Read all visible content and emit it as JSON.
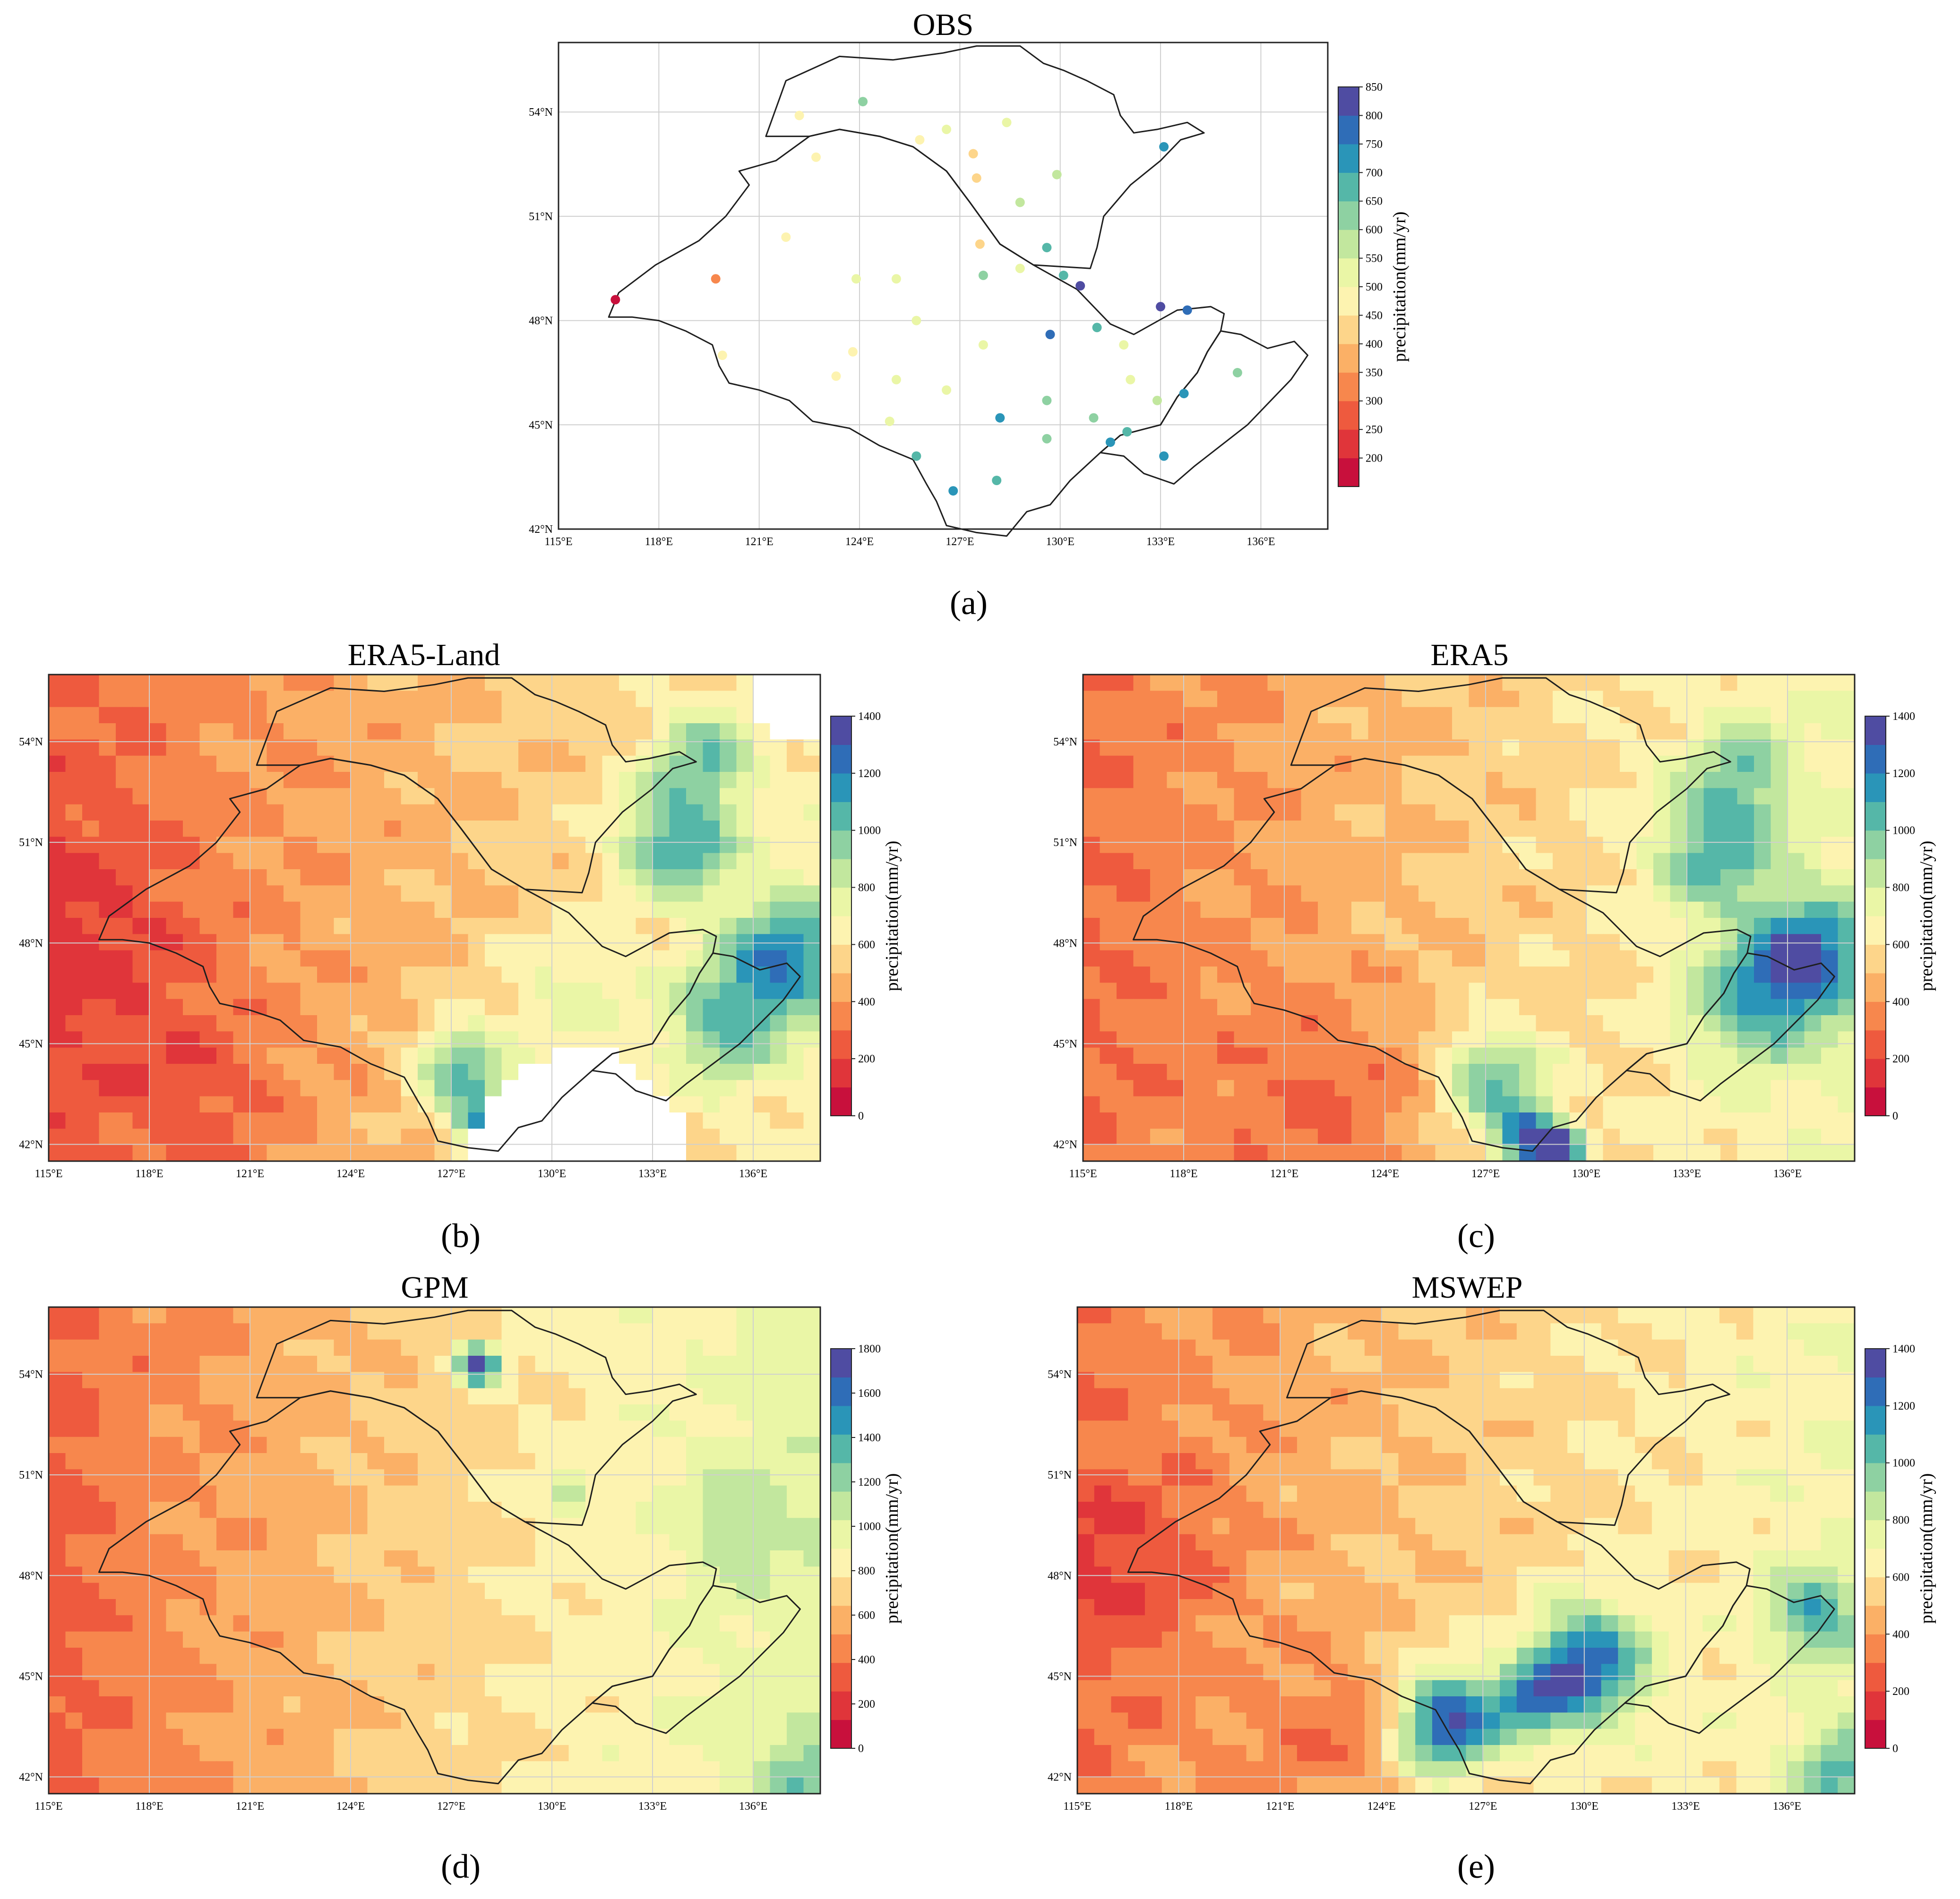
{
  "chart_data": [
    {
      "id": "a",
      "type": "scatter",
      "title": "OBS",
      "panel_label": "(a)",
      "xlim": [
        115,
        138
      ],
      "ylim": [
        42,
        56
      ],
      "xticks": [
        115,
        118,
        121,
        124,
        127,
        130,
        133,
        136
      ],
      "xtick_labels": [
        "115°E",
        "118°E",
        "121°E",
        "124°E",
        "127°E",
        "130°E",
        "133°E",
        "136°E"
      ],
      "yticks": [
        42,
        45,
        48,
        51,
        54
      ],
      "ytick_labels": [
        "42°N",
        "45°N",
        "48°N",
        "51°N",
        "54°N"
      ],
      "colorbar": {
        "label": "precipitation(mm/yr)",
        "min": 150,
        "max": 850,
        "ticks": [
          200,
          250,
          300,
          350,
          400,
          450,
          500,
          550,
          600,
          650,
          700,
          750,
          800,
          850
        ]
      },
      "stations": [
        {
          "lon": 116.7,
          "lat": 48.6,
          "value": 190
        },
        {
          "lon": 119.7,
          "lat": 49.2,
          "value": 320
        },
        {
          "lon": 119.9,
          "lat": 47.0,
          "value": 470
        },
        {
          "lon": 121.8,
          "lat": 50.4,
          "value": 460
        },
        {
          "lon": 122.7,
          "lat": 52.7,
          "value": 480
        },
        {
          "lon": 122.2,
          "lat": 53.9,
          "value": 480
        },
        {
          "lon": 124.1,
          "lat": 54.3,
          "value": 600
        },
        {
          "lon": 125.8,
          "lat": 53.2,
          "value": 470
        },
        {
          "lon": 126.6,
          "lat": 53.5,
          "value": 500
        },
        {
          "lon": 127.4,
          "lat": 52.8,
          "value": 420
        },
        {
          "lon": 128.4,
          "lat": 53.7,
          "value": 520
        },
        {
          "lon": 129.9,
          "lat": 52.2,
          "value": 560
        },
        {
          "lon": 127.5,
          "lat": 52.1,
          "value": 430
        },
        {
          "lon": 128.8,
          "lat": 51.4,
          "value": 590
        },
        {
          "lon": 127.6,
          "lat": 50.2,
          "value": 440
        },
        {
          "lon": 129.6,
          "lat": 50.1,
          "value": 680
        },
        {
          "lon": 128.8,
          "lat": 49.5,
          "value": 500
        },
        {
          "lon": 130.1,
          "lat": 49.3,
          "value": 650
        },
        {
          "lon": 127.7,
          "lat": 49.3,
          "value": 600
        },
        {
          "lon": 123.9,
          "lat": 49.2,
          "value": 520
        },
        {
          "lon": 125.1,
          "lat": 49.2,
          "value": 520
        },
        {
          "lon": 125.7,
          "lat": 48.0,
          "value": 520
        },
        {
          "lon": 123.8,
          "lat": 47.1,
          "value": 460
        },
        {
          "lon": 123.3,
          "lat": 46.4,
          "value": 450
        },
        {
          "lon": 125.1,
          "lat": 46.3,
          "value": 500
        },
        {
          "lon": 126.6,
          "lat": 46.0,
          "value": 500
        },
        {
          "lon": 127.7,
          "lat": 47.3,
          "value": 520
        },
        {
          "lon": 129.7,
          "lat": 47.6,
          "value": 760
        },
        {
          "lon": 130.6,
          "lat": 49.0,
          "value": 800
        },
        {
          "lon": 131.1,
          "lat": 47.8,
          "value": 690
        },
        {
          "lon": 133.0,
          "lat": 48.4,
          "value": 810
        },
        {
          "lon": 133.8,
          "lat": 48.3,
          "value": 760
        },
        {
          "lon": 133.1,
          "lat": 53.0,
          "value": 730
        },
        {
          "lon": 131.9,
          "lat": 47.3,
          "value": 520
        },
        {
          "lon": 132.1,
          "lat": 46.3,
          "value": 540
        },
        {
          "lon": 135.3,
          "lat": 46.5,
          "value": 620
        },
        {
          "lon": 133.7,
          "lat": 45.9,
          "value": 700
        },
        {
          "lon": 132.9,
          "lat": 45.7,
          "value": 580
        },
        {
          "lon": 129.6,
          "lat": 45.7,
          "value": 620
        },
        {
          "lon": 128.2,
          "lat": 45.2,
          "value": 740
        },
        {
          "lon": 131.0,
          "lat": 45.2,
          "value": 600
        },
        {
          "lon": 131.5,
          "lat": 44.5,
          "value": 740
        },
        {
          "lon": 132.0,
          "lat": 44.8,
          "value": 680
        },
        {
          "lon": 129.6,
          "lat": 44.6,
          "value": 640
        },
        {
          "lon": 124.9,
          "lat": 45.1,
          "value": 520
        },
        {
          "lon": 125.7,
          "lat": 44.1,
          "value": 690
        },
        {
          "lon": 126.8,
          "lat": 43.1,
          "value": 740
        },
        {
          "lon": 128.1,
          "lat": 43.4,
          "value": 680
        },
        {
          "lon": 133.1,
          "lat": 44.1,
          "value": 720
        }
      ]
    },
    {
      "id": "b",
      "type": "heatmap",
      "title": "ERA5-Land",
      "panel_label": "(b)",
      "xlim": [
        115,
        138
      ],
      "ylim": [
        41.5,
        56
      ],
      "xticks": [
        115,
        118,
        121,
        124,
        127,
        130,
        133,
        136
      ],
      "xtick_labels": [
        "115°E",
        "118°E",
        "121°E",
        "124°E",
        "127°E",
        "130°E",
        "133°E",
        "136°E"
      ],
      "yticks": [
        42,
        45,
        48,
        51,
        54
      ],
      "ytick_labels": [
        "42°N",
        "45°N",
        "48°N",
        "51°N",
        "54°N"
      ],
      "colorbar": {
        "label": "precipitation(mm/yr)",
        "min": 0,
        "max": 1400,
        "ticks": [
          0,
          200,
          400,
          600,
          800,
          1000,
          1200,
          1400
        ]
      },
      "field_base": 560,
      "gradient": {
        "west_value": 260,
        "east_value": 640
      },
      "features": [
        {
          "lon": 116.5,
          "lat": 48.0,
          "amp": -140,
          "r": 2.5
        },
        {
          "lon": 133.7,
          "lat": 51.0,
          "amp": 520,
          "r": 1.2
        },
        {
          "lon": 134.5,
          "lat": 53.5,
          "amp": 360,
          "r": 1.0
        },
        {
          "lon": 136.9,
          "lat": 47.5,
          "amp": 560,
          "r": 1.3
        },
        {
          "lon": 135.0,
          "lat": 45.5,
          "amp": 400,
          "r": 1.2
        },
        {
          "lon": 127.3,
          "lat": 44.2,
          "amp": 520,
          "r": 1.0
        },
        {
          "lon": 128.2,
          "lat": 42.3,
          "amp": 700,
          "r": 0.7
        },
        {
          "lon": 130.5,
          "lat": 46.5,
          "amp": 200,
          "r": 1.5
        },
        {
          "lon": 119.5,
          "lat": 43.5,
          "amp": -120,
          "r": 1.8
        }
      ],
      "missing": [
        {
          "lon": 130.8,
          "lat": 41.6,
          "r": 3.2
        },
        {
          "lon": 137.2,
          "lat": 55.2,
          "r": 1.2
        }
      ]
    },
    {
      "id": "c",
      "type": "heatmap",
      "title": "ERA5",
      "panel_label": "(c)",
      "xlim": [
        115,
        138
      ],
      "ylim": [
        41.5,
        56
      ],
      "xticks": [
        115,
        118,
        121,
        124,
        127,
        130,
        133,
        136
      ],
      "xtick_labels": [
        "115°E",
        "118°E",
        "121°E",
        "124°E",
        "127°E",
        "130°E",
        "133°E",
        "136°E"
      ],
      "yticks": [
        42,
        45,
        48,
        51,
        54
      ],
      "ytick_labels": [
        "42°N",
        "45°N",
        "48°N",
        "51°N",
        "54°N"
      ],
      "colorbar": {
        "label": "precipitation(mm/yr)",
        "min": 0,
        "max": 1400,
        "ticks": [
          0,
          200,
          400,
          600,
          800,
          1000,
          1200,
          1400
        ]
      },
      "field_base": 570,
      "gradient": {
        "west_value": 280,
        "east_value": 700
      },
      "features": [
        {
          "lon": 133.9,
          "lat": 50.8,
          "amp": 420,
          "r": 1.3
        },
        {
          "lon": 134.6,
          "lat": 53.2,
          "amp": 300,
          "r": 1.0
        },
        {
          "lon": 136.6,
          "lat": 47.6,
          "amp": 600,
          "r": 1.2
        },
        {
          "lon": 134.9,
          "lat": 46.2,
          "amp": 380,
          "r": 1.4
        },
        {
          "lon": 127.2,
          "lat": 44.0,
          "amp": 460,
          "r": 1.1
        },
        {
          "lon": 128.2,
          "lat": 42.2,
          "amp": 650,
          "r": 0.7
        },
        {
          "lon": 129.2,
          "lat": 41.8,
          "amp": 700,
          "r": 0.5
        },
        {
          "lon": 122.5,
          "lat": 43.5,
          "amp": -170,
          "r": 2.0
        }
      ],
      "missing": []
    },
    {
      "id": "d",
      "type": "heatmap",
      "title": "GPM",
      "panel_label": "(d)",
      "xlim": [
        115,
        138
      ],
      "ylim": [
        41.5,
        56
      ],
      "xticks": [
        115,
        118,
        121,
        124,
        127,
        130,
        133,
        136
      ],
      "xtick_labels": [
        "115°E",
        "118°E",
        "121°E",
        "124°E",
        "127°E",
        "130°E",
        "133°E",
        "136°E"
      ],
      "yticks": [
        42,
        45,
        48,
        51,
        54
      ],
      "ytick_labels": [
        "42°N",
        "45°N",
        "48°N",
        "51°N",
        "54°N"
      ],
      "colorbar": {
        "label": "precipitation(mm/yr)",
        "min": 0,
        "max": 1800,
        "ticks": [
          0,
          200,
          400,
          600,
          800,
          1000,
          1200,
          1400,
          1600,
          1800
        ]
      },
      "field_base": 700,
      "gradient": {
        "west_value": 330,
        "east_value": 980
      },
      "features": [
        {
          "lon": 127.8,
          "lat": 54.3,
          "amp": 1050,
          "r": 0.4
        },
        {
          "lon": 130.4,
          "lat": 50.4,
          "amp": 450,
          "r": 0.4
        },
        {
          "lon": 135.5,
          "lat": 49.5,
          "amp": 200,
          "r": 1.2
        },
        {
          "lon": 137.5,
          "lat": 42.0,
          "amp": 300,
          "r": 1.0
        }
      ],
      "missing": []
    },
    {
      "id": "e",
      "type": "heatmap",
      "title": "MSWEP",
      "panel_label": "(e)",
      "xlim": [
        115,
        138
      ],
      "ylim": [
        41.5,
        56
      ],
      "xticks": [
        115,
        118,
        121,
        124,
        127,
        130,
        133,
        136
      ],
      "xtick_labels": [
        "115°E",
        "118°E",
        "121°E",
        "124°E",
        "127°E",
        "130°E",
        "133°E",
        "136°E"
      ],
      "yticks": [
        42,
        45,
        48,
        51,
        54
      ],
      "ytick_labels": [
        "42°N",
        "45°N",
        "48°N",
        "51°N",
        "54°N"
      ],
      "colorbar": {
        "label": "precipitation(mm/yr)",
        "min": 0,
        "max": 1400,
        "ticks": [
          0,
          200,
          400,
          600,
          800,
          1000,
          1200,
          1400
        ]
      },
      "field_base": 560,
      "gradient": {
        "west_value": 300,
        "east_value": 700
      },
      "features": [
        {
          "lon": 126.0,
          "lat": 43.6,
          "amp": 800,
          "r": 1.1
        },
        {
          "lon": 130.0,
          "lat": 45.3,
          "amp": 720,
          "r": 1.2
        },
        {
          "lon": 128.4,
          "lat": 44.2,
          "amp": 420,
          "r": 0.8
        },
        {
          "lon": 136.8,
          "lat": 46.8,
          "amp": 420,
          "r": 0.9
        },
        {
          "lon": 137.5,
          "lat": 42.3,
          "amp": 350,
          "r": 0.9
        },
        {
          "lon": 116.5,
          "lat": 48.5,
          "amp": -170,
          "r": 1.8
        },
        {
          "lon": 122.5,
          "lat": 43.3,
          "amp": -150,
          "r": 1.5
        }
      ],
      "missing": []
    }
  ]
}
